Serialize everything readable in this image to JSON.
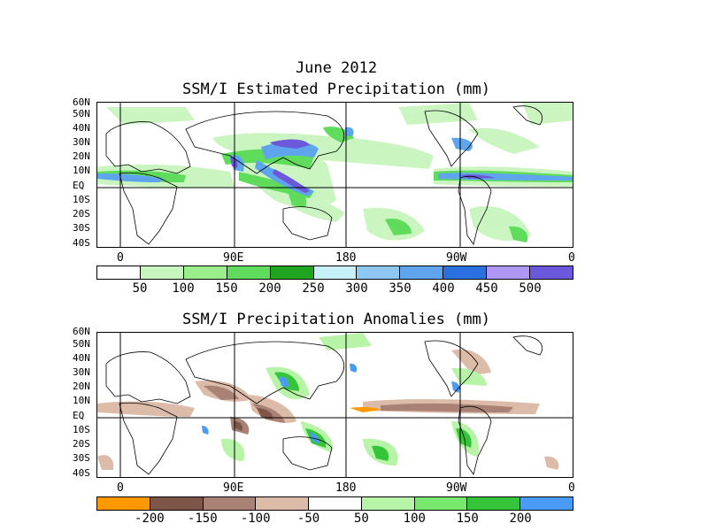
{
  "header": {
    "date": "June 2012",
    "title1": "SSM/I Estimated Precipitation (mm)",
    "title2": "SSM/I Precipitation Anomalies (mm)"
  },
  "axes": {
    "lat_labels": [
      "60N",
      "50N",
      "40N",
      "30N",
      "20N",
      "10N",
      "EQ",
      "10S",
      "20S",
      "30S",
      "40S"
    ],
    "lon_labels": [
      "0",
      "90E",
      "180",
      "90W",
      "0"
    ]
  },
  "panel1": {
    "colorbar": {
      "colors": [
        "#ffffff",
        "#c8f5be",
        "#9aee8c",
        "#5fdc5c",
        "#1fa51f",
        "#c6f1f8",
        "#8ec7f3",
        "#5ea5ed",
        "#2b70df",
        "#ae97f4",
        "#6c58da"
      ],
      "labels": [
        "50",
        "100",
        "150",
        "200",
        "250",
        "300",
        "350",
        "400",
        "450",
        "500"
      ]
    }
  },
  "panel2": {
    "colorbar": {
      "colors": [
        "#ff9900",
        "#7d5549",
        "#a98275",
        "#dcbba9",
        "#ffffff",
        "#b8f4a8",
        "#78e86e",
        "#36c43a",
        "#4a9bf3"
      ],
      "labels": [
        "-200",
        "-150",
        "-100",
        "-50",
        "50",
        "100",
        "150",
        "200"
      ]
    }
  }
}
